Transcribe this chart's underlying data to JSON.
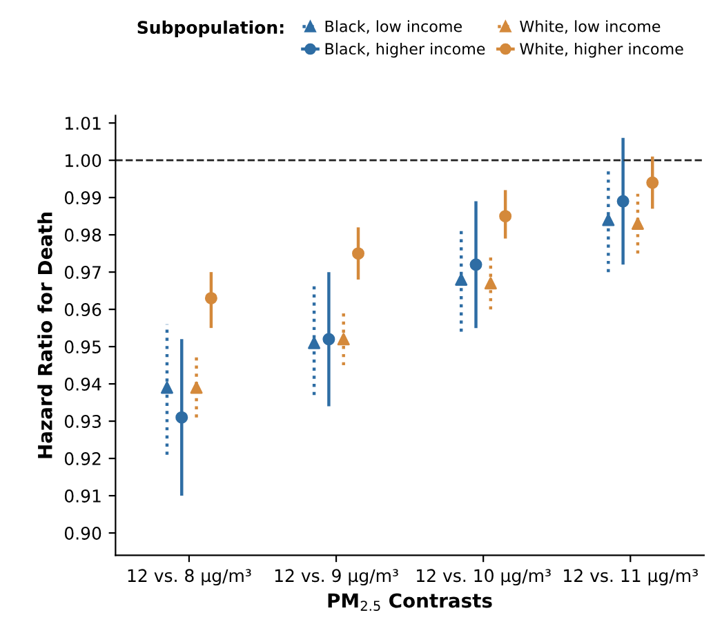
{
  "chart_data": {
    "type": "scatter",
    "ylabel": "Hazard Ratio for Death",
    "xlabel": "PM$_{2.5}$ Contrasts",
    "legend_title": "Subpopulation:",
    "categories": [
      "12 vs. 8 μg/m³",
      "12 vs. 9 μg/m³",
      "12 vs. 10 μg/m³",
      "12 vs. 11 μg/m³"
    ],
    "series": [
      {
        "name": "Black, low income",
        "color": "#2e6da4",
        "marker": "triangle",
        "line_style": "dotted",
        "values": [
          0.939,
          0.951,
          0.968,
          0.984
        ],
        "errors": [
          [
            0.921,
            0.956
          ],
          [
            0.937,
            0.967
          ],
          [
            0.954,
            0.981
          ],
          [
            0.97,
            0.998
          ]
        ]
      },
      {
        "name": "Black, higher income",
        "color": "#2e6da4",
        "marker": "circle",
        "line_style": "solid",
        "values": [
          0.931,
          0.952,
          0.972,
          0.989
        ],
        "errors": [
          [
            0.91,
            0.952
          ],
          [
            0.934,
            0.97
          ],
          [
            0.955,
            0.989
          ],
          [
            0.972,
            1.006
          ]
        ]
      },
      {
        "name": "White, low income",
        "color": "#d4893b",
        "marker": "triangle",
        "line_style": "dotted",
        "values": [
          0.939,
          0.952,
          0.967,
          0.983
        ],
        "errors": [
          [
            0.931,
            0.948
          ],
          [
            0.945,
            0.96
          ],
          [
            0.96,
            0.975
          ],
          [
            0.975,
            0.991
          ]
        ]
      },
      {
        "name": "White, higher income",
        "color": "#d4893b",
        "marker": "circle",
        "line_style": "solid",
        "values": [
          0.963,
          0.975,
          0.985,
          0.994
        ],
        "errors": [
          [
            0.955,
            0.97
          ],
          [
            0.968,
            0.982
          ],
          [
            0.979,
            0.992
          ],
          [
            0.987,
            1.001
          ]
        ]
      }
    ],
    "ylim": [
      0.894,
      1.012
    ],
    "yticks": [
      {
        "value": 0.9,
        "label": "0.90"
      },
      {
        "value": 0.91,
        "label": "0.91"
      },
      {
        "value": 0.92,
        "label": "0.92"
      },
      {
        "value": 0.93,
        "label": "0.93"
      },
      {
        "value": 0.94,
        "label": "0.94"
      },
      {
        "value": 0.95,
        "label": "0.95"
      },
      {
        "value": 0.96,
        "label": "0.96"
      },
      {
        "value": 0.97,
        "label": "0.97"
      },
      {
        "value": 0.98,
        "label": "0.98"
      },
      {
        "value": 0.99,
        "label": "0.99"
      },
      {
        "value": 1.0,
        "label": "1.00"
      },
      {
        "value": 1.01,
        "label": "1.01"
      }
    ],
    "ref_lines": [
      {
        "axis": "y",
        "value": 1.0,
        "color": "#222222",
        "line_style": "dashed"
      }
    ],
    "grid": false,
    "legend": "top"
  }
}
